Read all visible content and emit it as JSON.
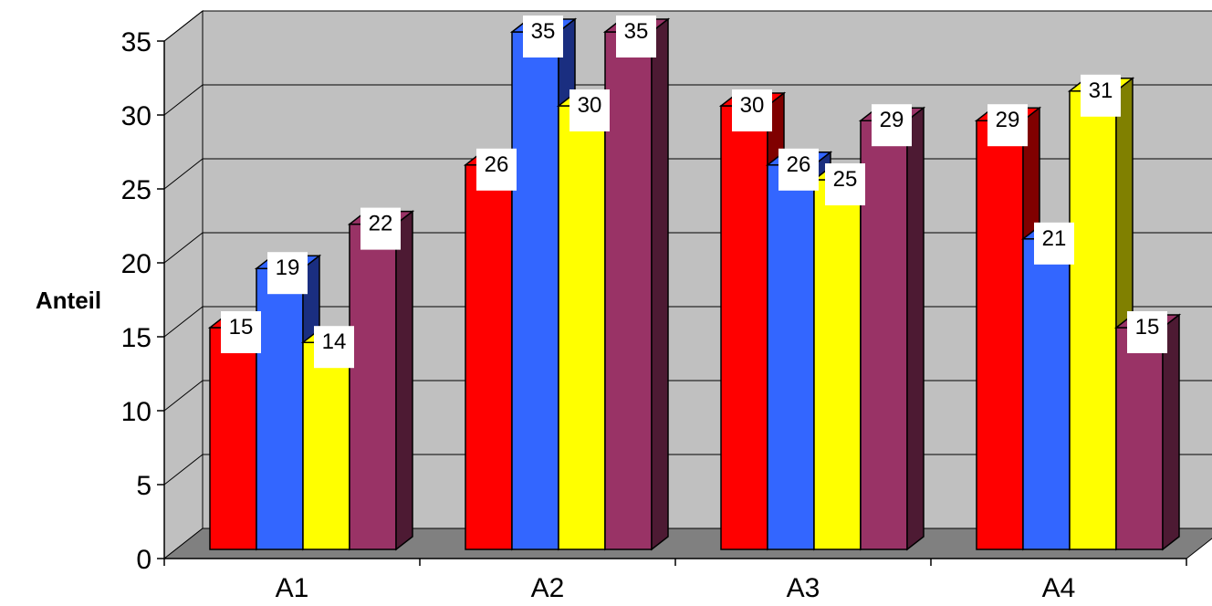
{
  "chart_data": {
    "type": "bar",
    "style": "3d-clustered-column",
    "ylabel": "Anteil",
    "xlabel": "",
    "categories": [
      "A1",
      "A2",
      "A3",
      "A4"
    ],
    "series": [
      {
        "values": [
          15,
          26,
          30,
          29
        ],
        "color": "#ff0000",
        "side_color": "#800000"
      },
      {
        "values": [
          19,
          35,
          26,
          21
        ],
        "color": "#3366ff",
        "side_color": "#1a2e80"
      },
      {
        "values": [
          14,
          30,
          25,
          31
        ],
        "color": "#ffff00",
        "side_color": "#808000"
      },
      {
        "values": [
          22,
          35,
          29,
          15
        ],
        "color": "#993366",
        "side_color": "#4d1a33"
      }
    ],
    "ylim": [
      0,
      35
    ],
    "yticks": [
      "0",
      "5",
      "10",
      "15",
      "20",
      "25",
      "30",
      "35"
    ],
    "grid": true,
    "legend": "none",
    "wall_color": "#c0c0c0",
    "floor_color": "#808080"
  }
}
